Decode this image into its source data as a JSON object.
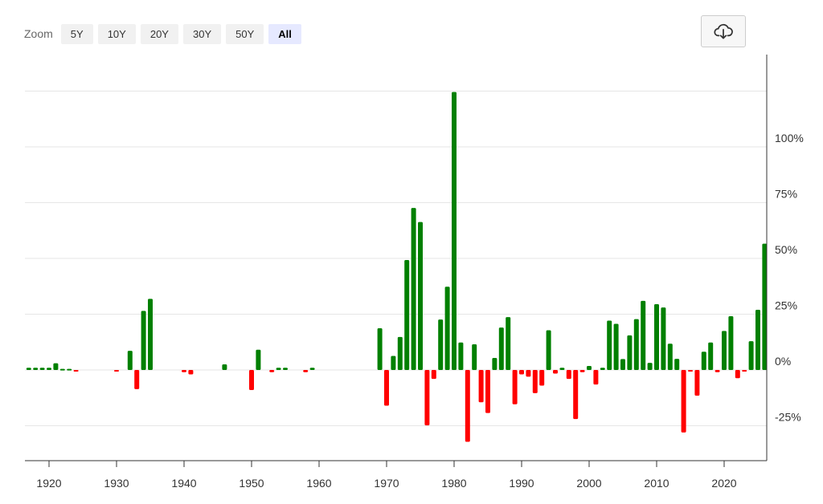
{
  "toolbar": {
    "zoom_label": "Zoom",
    "zoom_options": [
      "5Y",
      "10Y",
      "20Y",
      "30Y",
      "50Y",
      "All"
    ],
    "selected": "All"
  },
  "icons": {
    "export": "cloud-download-icon"
  },
  "colors": {
    "positive": "#008000",
    "negative": "#ff0000",
    "grid": "#e6e6e6",
    "active_zoom": "#e6e9ff"
  },
  "chart_data": {
    "type": "bar",
    "title": "",
    "xlabel": "",
    "ylabel": "",
    "y_unit": "%",
    "ylim": [
      -40,
      135
    ],
    "xlim": [
      1917,
      2027
    ],
    "y_ticks": [
      -25,
      0,
      25,
      50,
      75,
      100
    ],
    "y_tick_labels": [
      "-25%",
      "0%",
      "25%",
      "50%",
      "75%",
      "100%"
    ],
    "x_ticks": [
      1920,
      1930,
      1940,
      1950,
      1960,
      1970,
      1980,
      1990,
      2000,
      2010,
      2020
    ],
    "x_tick_labels": [
      "1920",
      "1930",
      "1940",
      "1950",
      "1960",
      "1970",
      "1980",
      "1990",
      "2000",
      "2010",
      "2020"
    ],
    "grid": true,
    "legend": "none",
    "x": [
      1917,
      1918,
      1919,
      1920,
      1921,
      1922,
      1923,
      1924,
      1930,
      1932,
      1933,
      1934,
      1935,
      1940,
      1941,
      1946,
      1950,
      1951,
      1953,
      1954,
      1955,
      1958,
      1959,
      1969,
      1970,
      1971,
      1972,
      1973,
      1974,
      1975,
      1976,
      1977,
      1978,
      1979,
      1980,
      1981,
      1982,
      1983,
      1984,
      1985,
      1986,
      1987,
      1988,
      1989,
      1990,
      1991,
      1992,
      1993,
      1994,
      1995,
      1996,
      1997,
      1998,
      1999,
      2000,
      2001,
      2002,
      2003,
      2004,
      2005,
      2006,
      2007,
      2008,
      2009,
      2010,
      2011,
      2012,
      2013,
      2014,
      2015,
      2016,
      2017,
      2018,
      2019,
      2020,
      2021,
      2022,
      2023,
      2024,
      2025,
      2026
    ],
    "values": [
      1,
      1,
      1,
      1,
      3,
      0.5,
      0.5,
      -0.5,
      -0.5,
      8.6,
      -8.6,
      26.5,
      31.9,
      -1,
      -2,
      2.5,
      -9,
      9.1,
      -1,
      1,
      1,
      -1,
      1,
      18.7,
      -16,
      6.3,
      14.8,
      49.3,
      72.6,
      66.3,
      -24.8,
      -4,
      22.6,
      37.3,
      124.6,
      12.3,
      -32.2,
      11.5,
      -14.5,
      -19.3,
      5.4,
      19,
      23.7,
      -15.4,
      -2,
      -3,
      -10.4,
      -7,
      17.8,
      -1.6,
      1,
      -4,
      -22,
      -1,
      1.8,
      -6.5,
      1,
      22.1,
      20.7,
      4.9,
      15.5,
      22.8,
      31,
      3.2,
      29.5,
      28,
      11.8,
      5,
      -28,
      -0.5,
      -11.5,
      8.2,
      12.3,
      -1,
      17.5,
      24.1,
      -3.7,
      -0.5,
      12.9,
      27,
      56.6
    ]
  }
}
